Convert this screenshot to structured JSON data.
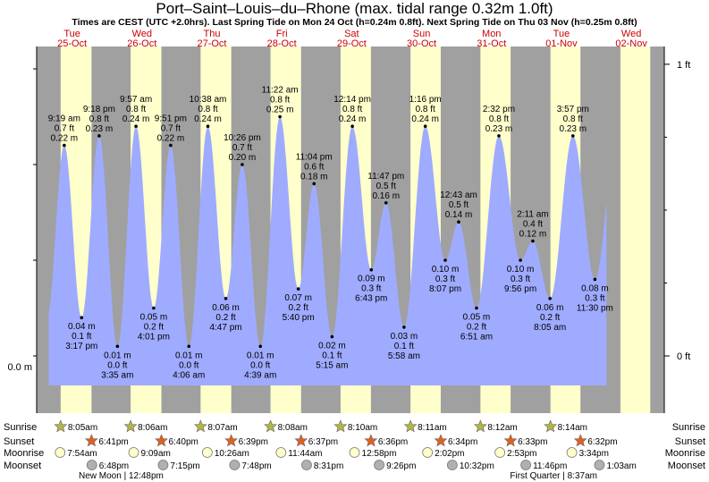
{
  "header": {
    "title": "Port–Saint–Louis–du–Rhone (max. tidal range 0.32m 1.0ft)",
    "subtitle": "Times are CEST (UTC +2.0hrs). Last Spring Tide on Mon 24 Oct (h=0.24m 0.8ft). Next Spring Tide on Thu 03 Nov (h=0.25m 0.8ft)"
  },
  "colors": {
    "night": "#a0a0a0",
    "day": "#ffffcc",
    "water": "#9fabff",
    "date_red": "#cc0000",
    "sunrise_star": "#b4b446",
    "sunset_star": "#e06020",
    "moonrise": "#ffffcc",
    "moonset": "#b0b0b0"
  },
  "chart_data": {
    "type": "area",
    "title": "Port–Saint–Louis–du–Rhone (max. tidal range 0.32m 1.0ft)",
    "ylabel_left": "0.0 m",
    "ylabel_right_top": "1 ft",
    "ylabel_right_zero": "0 ft",
    "ylim_m": [
      -0.06,
      0.31
    ],
    "x_range_hours": [
      0,
      223
    ],
    "days": [
      {
        "dow": "Tue",
        "date": "25-Oct"
      },
      {
        "dow": "Wed",
        "date": "26-Oct"
      },
      {
        "dow": "Thu",
        "date": "27-Oct"
      },
      {
        "dow": "Fri",
        "date": "28-Oct"
      },
      {
        "dow": "Sat",
        "date": "29-Oct"
      },
      {
        "dow": "Sun",
        "date": "30-Oct"
      },
      {
        "dow": "Mon",
        "date": "31-Oct"
      },
      {
        "dow": "Tue",
        "date": "01-Nov"
      },
      {
        "dow": "Wed",
        "date": "02-Nov"
      }
    ],
    "daylight": [
      {
        "rise": 8.08,
        "set": 18.68
      },
      {
        "rise": 8.1,
        "set": 18.67
      },
      {
        "rise": 8.12,
        "set": 18.65
      },
      {
        "rise": 8.13,
        "set": 18.62
      },
      {
        "rise": 8.17,
        "set": 18.6
      },
      {
        "rise": 8.18,
        "set": 18.57
      },
      {
        "rise": 8.2,
        "set": 18.55
      },
      {
        "rise": 8.23,
        "set": 18.53
      },
      {
        "rise": 8.25,
        "set": 18.5
      }
    ],
    "tides": [
      {
        "t": 9.32,
        "time": "9:19 am",
        "ft": "0.7 ft",
        "m": 0.22,
        "mlabel": "0.22 m",
        "type": "H"
      },
      {
        "t": 15.28,
        "time": "3:17 pm",
        "ft": "0.1 ft",
        "m": 0.04,
        "mlabel": "0.04 m",
        "type": "L"
      },
      {
        "t": 21.3,
        "time": "9:18 pm",
        "ft": "0.8 ft",
        "m": 0.23,
        "mlabel": "0.23 m",
        "type": "H"
      },
      {
        "t": 27.58,
        "time": "3:35 am",
        "ft": "0.0 ft",
        "m": 0.01,
        "mlabel": "0.01 m",
        "type": "L"
      },
      {
        "t": 33.95,
        "time": "9:57 am",
        "ft": "0.8 ft",
        "m": 0.24,
        "mlabel": "0.24 m",
        "type": "H"
      },
      {
        "t": 40.02,
        "time": "4:01 pm",
        "ft": "0.2 ft",
        "m": 0.05,
        "mlabel": "0.05 m",
        "type": "L"
      },
      {
        "t": 45.85,
        "time": "9:51 pm",
        "ft": "0.7 ft",
        "m": 0.22,
        "mlabel": "0.22 m",
        "type": "H"
      },
      {
        "t": 52.1,
        "time": "4:06 am",
        "ft": "0.0 ft",
        "m": 0.01,
        "mlabel": "0.01 m",
        "type": "L"
      },
      {
        "t": 58.63,
        "time": "10:38 am",
        "ft": "0.8 ft",
        "m": 0.24,
        "mlabel": "0.24 m",
        "type": "H"
      },
      {
        "t": 64.78,
        "time": "4:47 pm",
        "ft": "0.2 ft",
        "m": 0.06,
        "mlabel": "0.06 m",
        "type": "L"
      },
      {
        "t": 70.43,
        "time": "10:26 pm",
        "ft": "0.7 ft",
        "m": 0.2,
        "mlabel": "0.20 m",
        "type": "H"
      },
      {
        "t": 76.65,
        "time": "4:39 am",
        "ft": "0.0 ft",
        "m": 0.01,
        "mlabel": "0.01 m",
        "type": "L"
      },
      {
        "t": 83.37,
        "time": "11:22 am",
        "ft": "0.8 ft",
        "m": 0.25,
        "mlabel": "0.25 m",
        "type": "H"
      },
      {
        "t": 89.67,
        "time": "5:40 pm",
        "ft": "0.2 ft",
        "m": 0.07,
        "mlabel": "0.07 m",
        "type": "L"
      },
      {
        "t": 95.07,
        "time": "11:04 pm",
        "ft": "0.6 ft",
        "m": 0.18,
        "mlabel": "0.18 m",
        "type": "H"
      },
      {
        "t": 101.25,
        "time": "5:15 am",
        "ft": "0.1 ft",
        "m": 0.02,
        "mlabel": "0.02 m",
        "type": "L"
      },
      {
        "t": 108.23,
        "time": "12:14 pm",
        "ft": "0.8 ft",
        "m": 0.24,
        "mlabel": "0.24 m",
        "type": "H"
      },
      {
        "t": 114.72,
        "time": "6:43 pm",
        "ft": "0.3 ft",
        "m": 0.09,
        "mlabel": "0.09 m",
        "type": "L"
      },
      {
        "t": 119.78,
        "time": "11:47 pm",
        "ft": "0.5 ft",
        "m": 0.16,
        "mlabel": "0.16 m",
        "type": "H"
      },
      {
        "t": 125.97,
        "time": "5:58 am",
        "ft": "0.1 ft",
        "m": 0.03,
        "mlabel": "0.03 m",
        "type": "L"
      },
      {
        "t": 133.27,
        "time": "1:16 pm",
        "ft": "0.8 ft",
        "m": 0.24,
        "mlabel": "0.24 m",
        "type": "H"
      },
      {
        "t": 140.12,
        "time": "8:07 pm",
        "ft": "0.3 ft",
        "m": 0.1,
        "mlabel": "0.10 m",
        "type": "L"
      },
      {
        "t": 144.72,
        "time": "12:43 am",
        "ft": "0.5 ft",
        "m": 0.14,
        "mlabel": "0.14 m",
        "type": "H"
      },
      {
        "t": 150.85,
        "time": "6:51 am",
        "ft": "0.2 ft",
        "m": 0.05,
        "mlabel": "0.05 m",
        "type": "L"
      },
      {
        "t": 158.53,
        "time": "2:32 pm",
        "ft": "0.8 ft",
        "m": 0.23,
        "mlabel": "0.23 m",
        "type": "H"
      },
      {
        "t": 165.93,
        "time": "9:56 pm",
        "ft": "0.3 ft",
        "m": 0.1,
        "mlabel": "0.10 m",
        "type": "L"
      },
      {
        "t": 170.18,
        "time": "2:11 am",
        "ft": "0.4 ft",
        "m": 0.12,
        "mlabel": "0.12 m",
        "type": "H"
      },
      {
        "t": 176.08,
        "time": "8:05 am",
        "ft": "0.2 ft",
        "m": 0.06,
        "mlabel": "0.06 m",
        "type": "L"
      },
      {
        "t": 183.95,
        "time": "3:57 pm",
        "ft": "0.8 ft",
        "m": 0.23,
        "mlabel": "0.23 m",
        "type": "H"
      },
      {
        "t": 191.5,
        "time": "11:30 pm",
        "ft": "0.3 ft",
        "m": 0.08,
        "mlabel": "0.08 m",
        "type": "L"
      }
    ]
  },
  "astro": {
    "labels": {
      "sunrise": "Sunrise",
      "sunset": "Sunset",
      "moonrise": "Moonrise",
      "moonset": "Moonset"
    },
    "sunrise": [
      {
        "t": 8.08,
        "text": "8:05am"
      },
      {
        "t": 32.1,
        "text": "8:06am"
      },
      {
        "t": 56.12,
        "text": "8:07am"
      },
      {
        "t": 80.13,
        "text": "8:08am"
      },
      {
        "t": 104.17,
        "text": "8:10am"
      },
      {
        "t": 128.18,
        "text": "8:11am"
      },
      {
        "t": 152.2,
        "text": "8:12am"
      },
      {
        "t": 176.23,
        "text": "8:14am"
      }
    ],
    "sunset": [
      {
        "t": 18.68,
        "text": "6:41pm"
      },
      {
        "t": 42.67,
        "text": "6:40pm"
      },
      {
        "t": 66.65,
        "text": "6:39pm"
      },
      {
        "t": 90.62,
        "text": "6:37pm"
      },
      {
        "t": 114.6,
        "text": "6:36pm"
      },
      {
        "t": 138.57,
        "text": "6:34pm"
      },
      {
        "t": 162.55,
        "text": "6:33pm"
      },
      {
        "t": 186.53,
        "text": "6:32pm"
      }
    ],
    "moonrise": [
      {
        "t": 7.9,
        "text": "7:54am"
      },
      {
        "t": 33.15,
        "text": "9:09am"
      },
      {
        "t": 58.43,
        "text": "10:26am"
      },
      {
        "t": 83.73,
        "text": "11:44am"
      },
      {
        "t": 108.97,
        "text": "12:58pm"
      },
      {
        "t": 134.03,
        "text": "2:02pm"
      },
      {
        "t": 158.88,
        "text": "2:53pm"
      },
      {
        "t": 183.57,
        "text": "3:34pm"
      }
    ],
    "moonset": [
      {
        "t": 18.8,
        "text": "6:48pm"
      },
      {
        "t": 43.25,
        "text": "7:15pm"
      },
      {
        "t": 67.8,
        "text": "7:48pm"
      },
      {
        "t": 92.52,
        "text": "8:31pm"
      },
      {
        "t": 117.43,
        "text": "9:26pm"
      },
      {
        "t": 142.53,
        "text": "10:32pm"
      },
      {
        "t": 167.77,
        "text": "11:46pm"
      },
      {
        "t": 193.05,
        "text": "1:03am"
      }
    ],
    "moon_phases": [
      {
        "name": "New Moon",
        "time": "12:48pm",
        "align": "left"
      },
      {
        "name": "First Quarter",
        "time": "8:37am",
        "align": "right"
      }
    ]
  }
}
